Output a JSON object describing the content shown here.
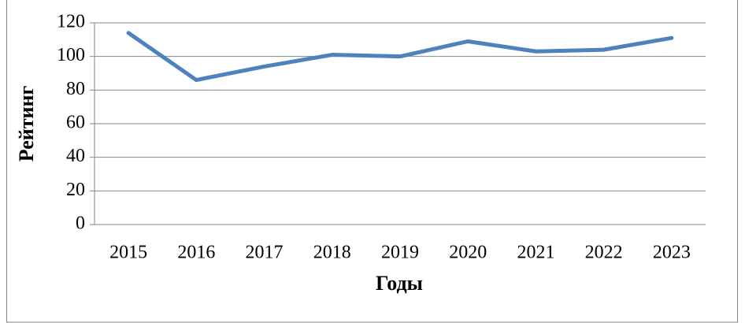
{
  "chart_data": {
    "type": "line",
    "x_label": "Годы",
    "y_label": "Рейтинг",
    "categories": [
      "2015",
      "2016",
      "2017",
      "2018",
      "2019",
      "2020",
      "2021",
      "2022",
      "2023"
    ],
    "values": [
      114,
      86,
      94,
      101,
      100,
      109,
      103,
      104,
      111
    ],
    "color": "#4f81bd",
    "ylim": [
      0,
      120
    ],
    "yticks": [
      0,
      20,
      40,
      60,
      80,
      100,
      120
    ],
    "grid": true
  }
}
